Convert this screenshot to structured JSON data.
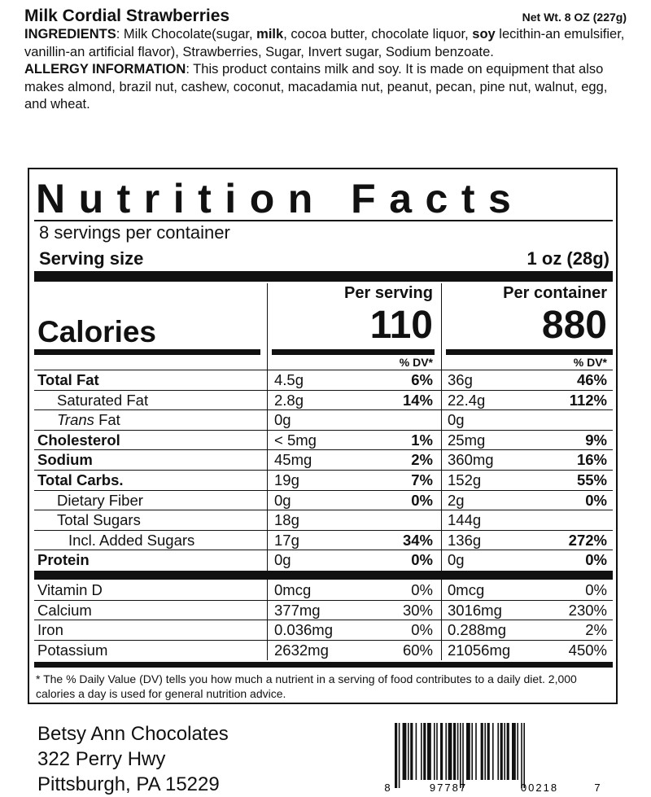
{
  "header": {
    "product_name": "Milk Cordial Strawberries",
    "net_weight": "Net Wt. 8 OZ (227g)",
    "ingredients_label": "INGREDIENTS",
    "ingredients_parts": [
      {
        "t": ": Milk Chocolate(sugar, ",
        "b": false
      },
      {
        "t": "milk",
        "b": true
      },
      {
        "t": ", cocoa butter, chocolate liquor, ",
        "b": false
      },
      {
        "t": "soy",
        "b": true
      },
      {
        "t": " lecithin-an emulsifier, vanillin-an artificial flavor), Strawberries, Sugar, Invert sugar, Sodium benzoate.",
        "b": false
      }
    ],
    "allergy_label": "ALLERGY INFORMATION",
    "allergy_text": ": This product contains milk and soy. It is made on equipment that also makes almond, brazil nut, cashew, coconut, macadamia nut, peanut, pecan, pine nut, walnut, egg, and wheat."
  },
  "nutrition": {
    "title": "Nutrition Facts",
    "servings_per_container": "8 servings per container",
    "serving_size_label": "Serving size",
    "serving_size_value": "1 oz (28g)",
    "per_serving_label": "Per serving",
    "per_container_label": "Per container",
    "calories_label": "Calories",
    "calories_per_serving": "110",
    "calories_per_container": "880",
    "dv_header": "% DV*",
    "rows": [
      {
        "name": "Total Fat",
        "style": "bold",
        "serv_amt": "4.5g",
        "serv_dv": "6%",
        "cont_amt": "36g",
        "cont_dv": "46%"
      },
      {
        "name": "Saturated Fat",
        "style": "indent1",
        "serv_amt": "2.8g",
        "serv_dv": "14%",
        "cont_amt": "22.4g",
        "cont_dv": "112%"
      },
      {
        "name": "Fat",
        "prefix_italic": "Trans",
        "style": "indent1",
        "serv_amt": "0g",
        "serv_dv": "",
        "cont_amt": "0g",
        "cont_dv": ""
      },
      {
        "name": "Cholesterol",
        "style": "bold",
        "serv_amt": "< 5mg",
        "serv_dv": "1%",
        "cont_amt": "25mg",
        "cont_dv": "9%"
      },
      {
        "name": "Sodium",
        "style": "bold",
        "serv_amt": "45mg",
        "serv_dv": "2%",
        "cont_amt": "360mg",
        "cont_dv": "16%"
      },
      {
        "name": "Total Carbs.",
        "style": "bold",
        "serv_amt": "19g",
        "serv_dv": "7%",
        "cont_amt": "152g",
        "cont_dv": "55%"
      },
      {
        "name": "Dietary Fiber",
        "style": "indent1",
        "serv_amt": "0g",
        "serv_dv": "0%",
        "cont_amt": "2g",
        "cont_dv": "0%"
      },
      {
        "name": "Total Sugars",
        "style": "indent1",
        "serv_amt": "18g",
        "serv_dv": "",
        "cont_amt": "144g",
        "cont_dv": ""
      },
      {
        "name": "Incl. Added Sugars",
        "style": "indent2",
        "serv_amt": "17g",
        "serv_dv": "34%",
        "cont_amt": "136g",
        "cont_dv": "272%"
      },
      {
        "name": "Protein",
        "style": "bold",
        "serv_amt": "0g",
        "serv_dv": "0%",
        "cont_amt": "0g",
        "cont_dv": "0%"
      }
    ],
    "vitamins": [
      {
        "name": "Vitamin D",
        "serv_amt": "0mcg",
        "serv_dv": "0%",
        "cont_amt": "0mcg",
        "cont_dv": "0%"
      },
      {
        "name": "Calcium",
        "serv_amt": "377mg",
        "serv_dv": "30%",
        "cont_amt": "3016mg",
        "cont_dv": "230%"
      },
      {
        "name": "Iron",
        "serv_amt": "0.036mg",
        "serv_dv": "0%",
        "cont_amt": "0.288mg",
        "cont_dv": "2%"
      },
      {
        "name": "Potassium",
        "serv_amt": "2632mg",
        "serv_dv": "60%",
        "cont_amt": "21056mg",
        "cont_dv": "450%"
      }
    ],
    "footnote": "* The % Daily Value (DV) tells you how much a nutrient in a serving of food contributes to a daily diet. 2,000 calories a day is used for general nutrition advice."
  },
  "footer": {
    "company": "Betsy Ann Chocolates",
    "address_line1": "322 Perry Hwy",
    "address_line2": "Pittsburgh, PA 15229"
  },
  "barcode": {
    "digit_first": "8",
    "group_left": "97787",
    "group_right": "00218",
    "digit_last": "7"
  }
}
